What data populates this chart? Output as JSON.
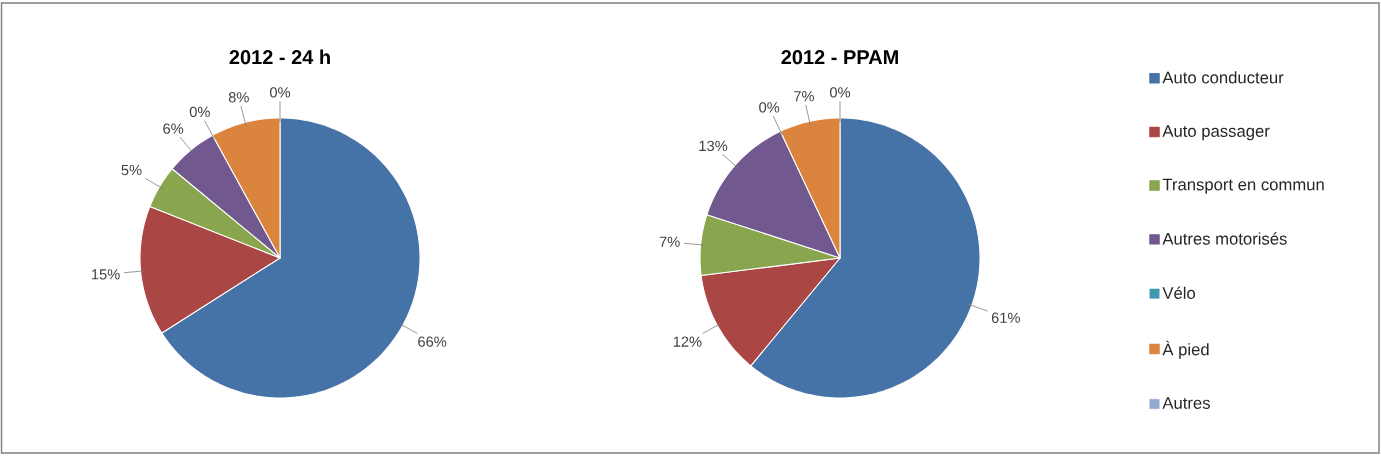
{
  "chart_data": {
    "type": "pie",
    "categories": [
      "Auto conducteur",
      "Auto passager",
      "Transport en commun",
      "Autres motorisés",
      "Vélo",
      "À pied",
      "Autres"
    ],
    "colors": [
      "#4572a7",
      "#aa4643",
      "#89a54e",
      "#71588f",
      "#4198af",
      "#db843d",
      "#93a9cf"
    ],
    "legend": "right",
    "series": [
      {
        "name": "2012 - 24 h",
        "values": [
          66,
          15,
          5,
          6,
          0,
          8,
          0
        ],
        "value_labels": [
          "66%",
          "15%",
          "5%",
          "6%",
          "0%",
          "8%",
          "0%"
        ]
      },
      {
        "name": "2012 - PPAM",
        "values": [
          61,
          12,
          7,
          13,
          0,
          7,
          0
        ],
        "value_labels": [
          "61%",
          "12%",
          "7%",
          "13%",
          "0%",
          "7%",
          "0%"
        ]
      }
    ]
  }
}
